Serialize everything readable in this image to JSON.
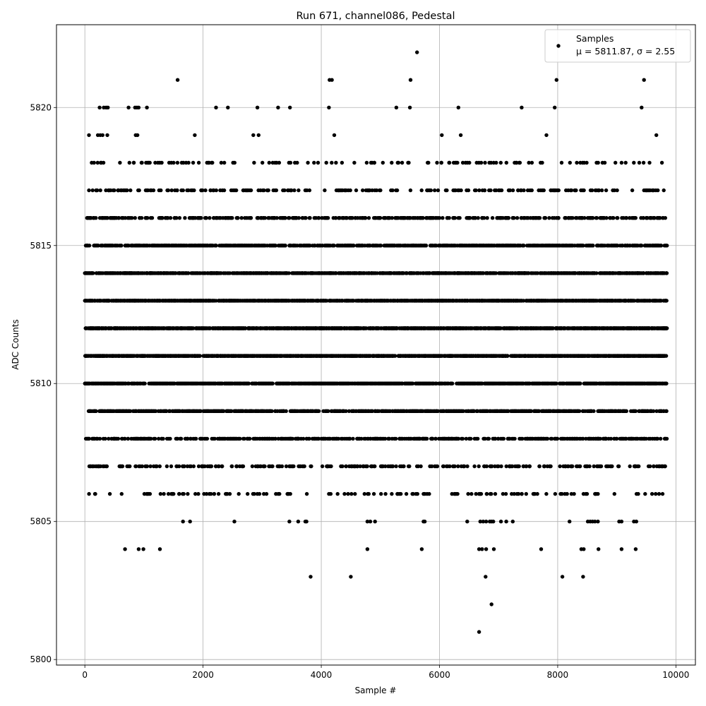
{
  "chart_data": {
    "type": "scatter",
    "title": "Run 671, channel086, Pedestal",
    "xlabel": "Sample #",
    "ylabel": "ADC Counts",
    "xlim": [
      -480,
      10330
    ],
    "ylim": [
      5799.8,
      5823.0
    ],
    "xticks": [
      0,
      2000,
      4000,
      6000,
      8000,
      10000
    ],
    "yticks": [
      5800,
      5805,
      5810,
      5815,
      5820
    ],
    "grid": true,
    "legend_position": "top-right",
    "legend": {
      "label": "Samples",
      "stats_text": "μ = 5811.87, σ = 2.55"
    },
    "mean": 5811.87,
    "sigma": 2.55,
    "n_samples": 9850,
    "marker_color": "#000000",
    "series": [
      {
        "name": "Samples",
        "outliers": [
          {
            "x": 1570,
            "y": 5821
          },
          {
            "x": 4140,
            "y": 5821
          },
          {
            "x": 4180,
            "y": 5821
          },
          {
            "x": 5620,
            "y": 5822
          },
          {
            "x": 5510,
            "y": 5821
          },
          {
            "x": 7980,
            "y": 5821
          },
          {
            "x": 9460,
            "y": 5821
          },
          {
            "x": 250,
            "y": 5820
          },
          {
            "x": 320,
            "y": 5820
          },
          {
            "x": 360,
            "y": 5820
          },
          {
            "x": 390,
            "y": 5820
          },
          {
            "x": 740,
            "y": 5820
          },
          {
            "x": 850,
            "y": 5820
          },
          {
            "x": 880,
            "y": 5820
          },
          {
            "x": 910,
            "y": 5820
          },
          {
            "x": 1050,
            "y": 5820
          },
          {
            "x": 2220,
            "y": 5820
          },
          {
            "x": 2420,
            "y": 5820
          },
          {
            "x": 2920,
            "y": 5820
          },
          {
            "x": 3270,
            "y": 5820
          },
          {
            "x": 3470,
            "y": 5820
          },
          {
            "x": 4130,
            "y": 5820
          },
          {
            "x": 5270,
            "y": 5820
          },
          {
            "x": 5500,
            "y": 5820
          },
          {
            "x": 6320,
            "y": 5820
          },
          {
            "x": 7390,
            "y": 5820
          },
          {
            "x": 7950,
            "y": 5820
          },
          {
            "x": 9420,
            "y": 5820
          },
          {
            "x": 70,
            "y": 5819
          },
          {
            "x": 220,
            "y": 5819
          },
          {
            "x": 260,
            "y": 5819
          },
          {
            "x": 300,
            "y": 5819
          },
          {
            "x": 380,
            "y": 5819
          },
          {
            "x": 860,
            "y": 5819
          },
          {
            "x": 890,
            "y": 5819
          },
          {
            "x": 1860,
            "y": 5819
          },
          {
            "x": 2850,
            "y": 5819
          },
          {
            "x": 2940,
            "y": 5819
          },
          {
            "x": 4220,
            "y": 5819
          },
          {
            "x": 6040,
            "y": 5819
          },
          {
            "x": 6360,
            "y": 5819
          },
          {
            "x": 7810,
            "y": 5819
          },
          {
            "x": 9670,
            "y": 5819
          },
          {
            "x": 1660,
            "y": 5805
          },
          {
            "x": 1780,
            "y": 5805
          },
          {
            "x": 2530,
            "y": 5805
          },
          {
            "x": 3460,
            "y": 5805
          },
          {
            "x": 3610,
            "y": 5805
          },
          {
            "x": 3730,
            "y": 5805
          },
          {
            "x": 3750,
            "y": 5805
          },
          {
            "x": 4780,
            "y": 5805
          },
          {
            "x": 4830,
            "y": 5805
          },
          {
            "x": 4910,
            "y": 5805
          },
          {
            "x": 5730,
            "y": 5805
          },
          {
            "x": 5750,
            "y": 5805
          },
          {
            "x": 6470,
            "y": 5805
          },
          {
            "x": 6690,
            "y": 5805
          },
          {
            "x": 6740,
            "y": 5805
          },
          {
            "x": 6790,
            "y": 5805
          },
          {
            "x": 6850,
            "y": 5805
          },
          {
            "x": 6880,
            "y": 5805
          },
          {
            "x": 6910,
            "y": 5805
          },
          {
            "x": 7040,
            "y": 5805
          },
          {
            "x": 7130,
            "y": 5805
          },
          {
            "x": 7240,
            "y": 5805
          },
          {
            "x": 8200,
            "y": 5805
          },
          {
            "x": 8510,
            "y": 5805
          },
          {
            "x": 8550,
            "y": 5805
          },
          {
            "x": 8590,
            "y": 5805
          },
          {
            "x": 8630,
            "y": 5805
          },
          {
            "x": 8680,
            "y": 5805
          },
          {
            "x": 9040,
            "y": 5805
          },
          {
            "x": 9080,
            "y": 5805
          },
          {
            "x": 9290,
            "y": 5805
          },
          {
            "x": 9330,
            "y": 5805
          },
          {
            "x": 680,
            "y": 5804
          },
          {
            "x": 910,
            "y": 5804
          },
          {
            "x": 990,
            "y": 5804
          },
          {
            "x": 1270,
            "y": 5804
          },
          {
            "x": 4780,
            "y": 5804
          },
          {
            "x": 5700,
            "y": 5804
          },
          {
            "x": 6670,
            "y": 5804
          },
          {
            "x": 6720,
            "y": 5804
          },
          {
            "x": 6790,
            "y": 5804
          },
          {
            "x": 6920,
            "y": 5804
          },
          {
            "x": 7720,
            "y": 5804
          },
          {
            "x": 8400,
            "y": 5804
          },
          {
            "x": 8440,
            "y": 5804
          },
          {
            "x": 8690,
            "y": 5804
          },
          {
            "x": 9080,
            "y": 5804
          },
          {
            "x": 9320,
            "y": 5804
          },
          {
            "x": 3820,
            "y": 5803
          },
          {
            "x": 4500,
            "y": 5803
          },
          {
            "x": 6780,
            "y": 5803
          },
          {
            "x": 8080,
            "y": 5803
          },
          {
            "x": 8430,
            "y": 5803
          },
          {
            "x": 6880,
            "y": 5802
          },
          {
            "x": 6670,
            "y": 5801
          }
        ]
      }
    ]
  }
}
